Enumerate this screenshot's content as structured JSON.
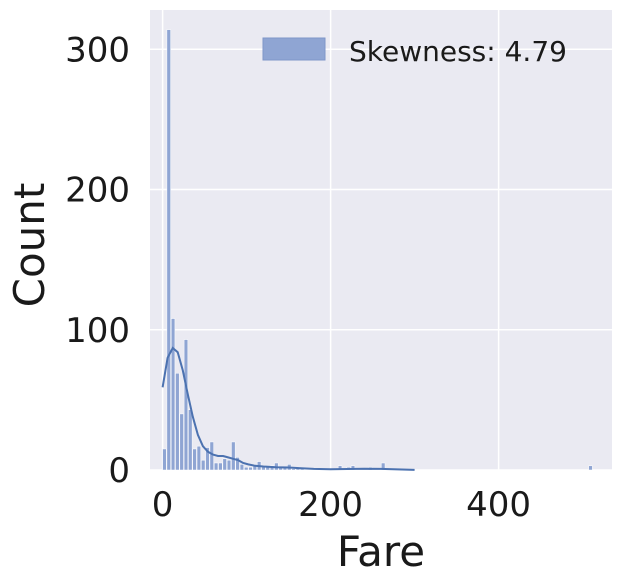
{
  "chart_data": {
    "type": "bar",
    "subtype": "histogram with kde line",
    "xlabel": "Fare",
    "ylabel": "Count",
    "xlim": [
      -15,
      535
    ],
    "ylim": [
      0,
      328
    ],
    "xticks": [
      0,
      200,
      400
    ],
    "yticks": [
      0,
      100,
      200,
      300
    ],
    "grid": true,
    "legend": {
      "placement": "top-right",
      "label": "Skewness: 4.79"
    },
    "colors": {
      "bars": "#8fa5d3",
      "kde": "#4c72b0",
      "background": "#eaeaf2",
      "grid": "#ffffff"
    },
    "bins": [
      {
        "x0": 0.0,
        "x1": 5.12,
        "count": 15
      },
      {
        "x0": 5.12,
        "x1": 10.25,
        "count": 314
      },
      {
        "x0": 10.25,
        "x1": 15.37,
        "count": 108
      },
      {
        "x0": 15.37,
        "x1": 20.49,
        "count": 69
      },
      {
        "x0": 20.49,
        "x1": 25.62,
        "count": 40
      },
      {
        "x0": 25.62,
        "x1": 30.74,
        "count": 93
      },
      {
        "x0": 30.74,
        "x1": 35.86,
        "count": 43
      },
      {
        "x0": 35.86,
        "x1": 40.99,
        "count": 15
      },
      {
        "x0": 40.99,
        "x1": 46.11,
        "count": 17
      },
      {
        "x0": 46.11,
        "x1": 51.23,
        "count": 7
      },
      {
        "x0": 51.23,
        "x1": 56.36,
        "count": 16
      },
      {
        "x0": 56.36,
        "x1": 61.48,
        "count": 20
      },
      {
        "x0": 61.48,
        "x1": 66.6,
        "count": 5
      },
      {
        "x0": 66.6,
        "x1": 71.73,
        "count": 5
      },
      {
        "x0": 71.73,
        "x1": 76.85,
        "count": 8
      },
      {
        "x0": 76.85,
        "x1": 81.97,
        "count": 7
      },
      {
        "x0": 81.97,
        "x1": 87.1,
        "count": 20
      },
      {
        "x0": 87.1,
        "x1": 92.22,
        "count": 9
      },
      {
        "x0": 92.22,
        "x1": 97.34,
        "count": 4
      },
      {
        "x0": 97.34,
        "x1": 102.47,
        "count": 2
      },
      {
        "x0": 102.47,
        "x1": 107.59,
        "count": 2
      },
      {
        "x0": 107.59,
        "x1": 112.71,
        "count": 3
      },
      {
        "x0": 112.71,
        "x1": 117.84,
        "count": 6
      },
      {
        "x0": 117.84,
        "x1": 122.96,
        "count": 3
      },
      {
        "x0": 122.96,
        "x1": 128.08,
        "count": 2
      },
      {
        "x0": 128.08,
        "x1": 133.21,
        "count": 3
      },
      {
        "x0": 133.21,
        "x1": 138.33,
        "count": 5
      },
      {
        "x0": 138.33,
        "x1": 143.45,
        "count": 2
      },
      {
        "x0": 143.45,
        "x1": 148.58,
        "count": 2
      },
      {
        "x0": 148.58,
        "x1": 153.7,
        "count": 4
      },
      {
        "x0": 153.7,
        "x1": 158.82,
        "count": 1
      },
      {
        "x0": 158.82,
        "x1": 163.95,
        "count": 2
      },
      {
        "x0": 163.95,
        "x1": 169.07,
        "count": 1
      },
      {
        "x0": 209.05,
        "x1": 214.17,
        "count": 3
      },
      {
        "x0": 219.3,
        "x1": 224.42,
        "count": 2
      },
      {
        "x0": 224.42,
        "x1": 229.55,
        "count": 3
      },
      {
        "x0": 245.0,
        "x1": 250.12,
        "count": 2
      },
      {
        "x0": 260.37,
        "x1": 265.49,
        "count": 5
      },
      {
        "x0": 507.21,
        "x1": 512.33,
        "count": 3
      }
    ],
    "kde": {
      "x": [
        0,
        6,
        12,
        18,
        24,
        30,
        36,
        42,
        48,
        54,
        60,
        66,
        72,
        78,
        84,
        90,
        96,
        102,
        110,
        120,
        135,
        150,
        165,
        180,
        200,
        220,
        240,
        260,
        280,
        300
      ],
      "y": [
        59,
        80,
        87,
        84,
        71,
        54,
        38,
        25,
        17,
        13,
        11,
        10,
        10,
        9,
        8,
        7,
        5,
        4,
        3,
        2.5,
        2,
        1.8,
        1.3,
        0.8,
        0.6,
        0.7,
        0.9,
        0.8,
        0.4,
        0.1
      ]
    }
  }
}
